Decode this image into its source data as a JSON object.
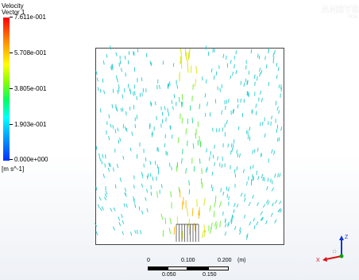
{
  "legend": {
    "title": "Velocity",
    "subtitle": "Vector 1",
    "ticks": [
      {
        "label": "7.611e-001",
        "value": 0.7611
      },
      {
        "label": "5.708e-001",
        "value": 0.5708
      },
      {
        "label": "3.805e-001",
        "value": 0.3805
      },
      {
        "label": "1.903e-001",
        "value": 0.1903
      },
      {
        "label": "0.000e+000",
        "value": 0.0
      }
    ],
    "units": "[m s^-1]"
  },
  "logo": {
    "name": "ANSYS",
    "version": "R14"
  },
  "scale": {
    "top_labels": [
      "0",
      "0.100",
      "0.200",
      "(m)"
    ],
    "bottom_labels": [
      "0.050",
      "0.150"
    ]
  },
  "axes": {
    "z": "Z",
    "x": "X"
  },
  "colors": {
    "vector_low": "#00cccc",
    "vector_mid": "#66ff33",
    "vector_high": "#ffcc00",
    "outline": "#444444"
  }
}
